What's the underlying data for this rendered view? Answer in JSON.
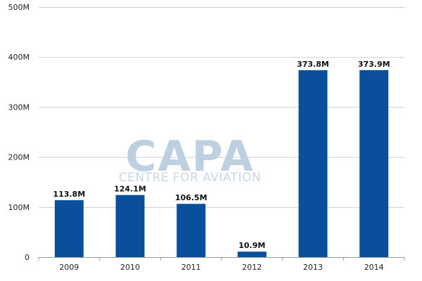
{
  "watermark": {
    "brand": "CAPA",
    "tagline": "CENTRE FOR AVIATION"
  },
  "colors": {
    "bar": "#0a4f9c",
    "grid": "#cfcfcf",
    "axis": "#999999"
  },
  "chart_data": {
    "type": "bar",
    "categories": [
      "2009",
      "2010",
      "2011",
      "2012",
      "2013",
      "2014"
    ],
    "values": [
      113.8,
      124.1,
      106.5,
      10.9,
      373.8,
      373.9
    ],
    "data_labels": [
      "113.8M",
      "124.1M",
      "106.5M",
      "10.9M",
      "373.8M",
      "373.9M"
    ],
    "y_ticks": [
      0,
      100,
      200,
      300,
      400,
      500
    ],
    "y_tick_labels": [
      "0",
      "100M",
      "200M",
      "300M",
      "400M",
      "500M"
    ],
    "ylim": [
      0,
      500
    ],
    "grid": true,
    "legend": "none"
  }
}
